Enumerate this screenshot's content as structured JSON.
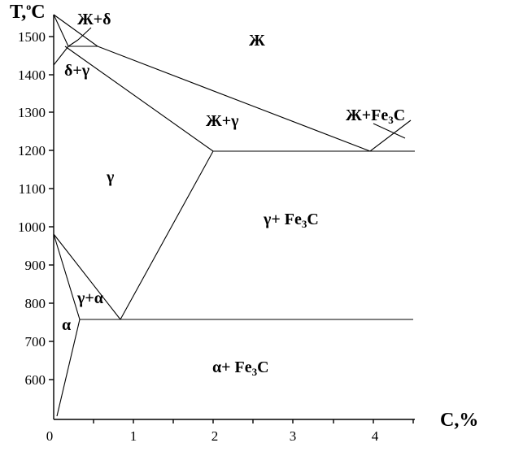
{
  "axes": {
    "y_title_main": "T,",
    "y_title_sup": "o",
    "y_title_unit": "C",
    "x_title": "C,%",
    "y_ticks": [
      "1500",
      "1400",
      "1300",
      "1200",
      "1100",
      "1000",
      "900",
      "800",
      "700",
      "600"
    ],
    "x_ticks": [
      "0",
      "1",
      "2",
      "3",
      "4"
    ]
  },
  "regions": {
    "liquid": "Ж",
    "liquid_delta": "Ж+δ",
    "delta_gamma": "δ+γ",
    "liquid_gamma": "Ж+γ",
    "liquid_cementite_prefix": "Ж+Fe",
    "liquid_cementite_sub": "3",
    "liquid_cementite_suffix": "C",
    "gamma": "γ",
    "gamma_cementite_prefix": "γ+ Fe",
    "gamma_cementite_sub": "3",
    "gamma_cementite_suffix": "C",
    "gamma_alpha": "γ+α",
    "alpha": "α",
    "alpha_cementite_prefix": "α+ Fe",
    "alpha_cementite_sub": "3",
    "alpha_cementite_suffix": "C"
  }
}
